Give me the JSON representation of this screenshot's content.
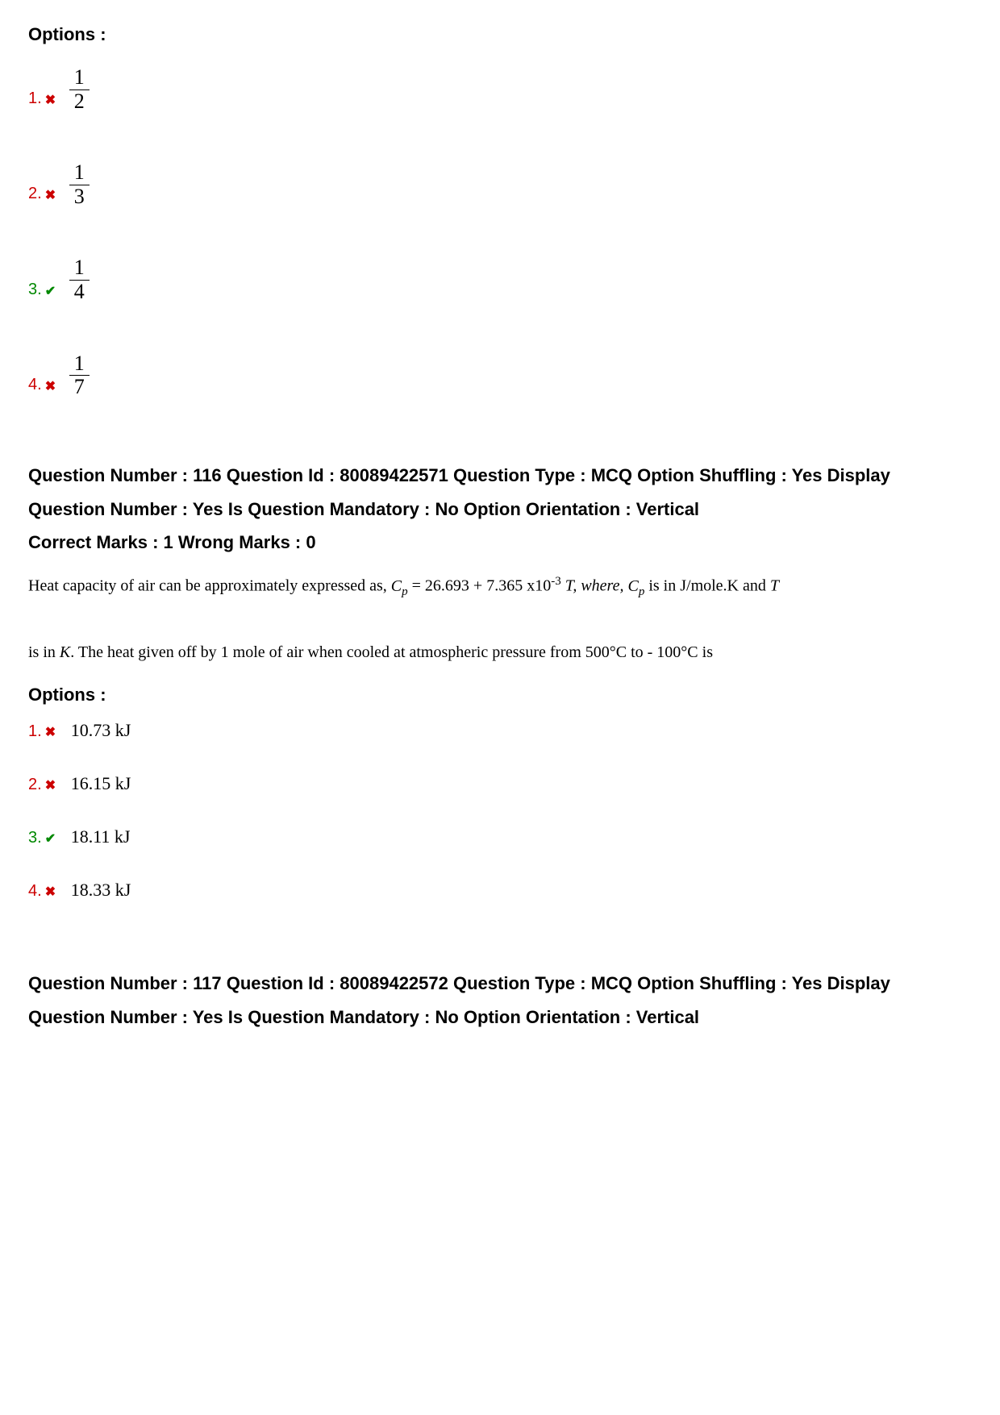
{
  "block1": {
    "options_label": "Options :",
    "options": [
      {
        "num": "1.",
        "status": "wrong",
        "frac_num": "1",
        "frac_den": "2"
      },
      {
        "num": "2.",
        "status": "wrong",
        "frac_num": "1",
        "frac_den": "3"
      },
      {
        "num": "3.",
        "status": "correct",
        "frac_num": "1",
        "frac_den": "4"
      },
      {
        "num": "4.",
        "status": "wrong",
        "frac_num": "1",
        "frac_den": "7"
      }
    ]
  },
  "q116": {
    "meta": "Question Number : 116 Question Id : 80089422571 Question Type : MCQ Option Shuffling : Yes Display Question Number : Yes Is Question Mandatory : No Option Orientation : Vertical",
    "marks": "Correct Marks : 1 Wrong Marks : 0",
    "body_part1": "Heat capacity of air can be approximately expressed as, ",
    "body_cp": "C",
    "body_psub": "p",
    "body_eq": " = 26.693 + 7.365 x10",
    "body_sup": "-3",
    "body_part2": " T, where, ",
    "body_part3": " is in J/mole.K and ",
    "body_T": "T",
    "body_line2_a": " is in ",
    "body_K": "K",
    "body_line2_b": ". The heat given off by 1 mole of air when cooled at atmospheric pressure from 500°C to - 100°C is",
    "options_label": "Options :",
    "options": [
      {
        "num": "1.",
        "status": "wrong",
        "text": "10.73 kJ"
      },
      {
        "num": "2.",
        "status": "wrong",
        "text": "16.15 kJ"
      },
      {
        "num": "3.",
        "status": "correct",
        "text": "18.11 kJ"
      },
      {
        "num": "4.",
        "status": "wrong",
        "text": "18.33 kJ"
      }
    ]
  },
  "q117": {
    "meta": "Question Number : 117 Question Id : 80089422572 Question Type : MCQ Option Shuffling : Yes Display Question Number : Yes Is Question Mandatory : No Option Orientation : Vertical"
  },
  "icons": {
    "wrong": "✖",
    "correct": "✔"
  },
  "colors": {
    "wrong": "#cc0000",
    "correct": "#008800",
    "text": "#000000",
    "background": "#ffffff"
  }
}
